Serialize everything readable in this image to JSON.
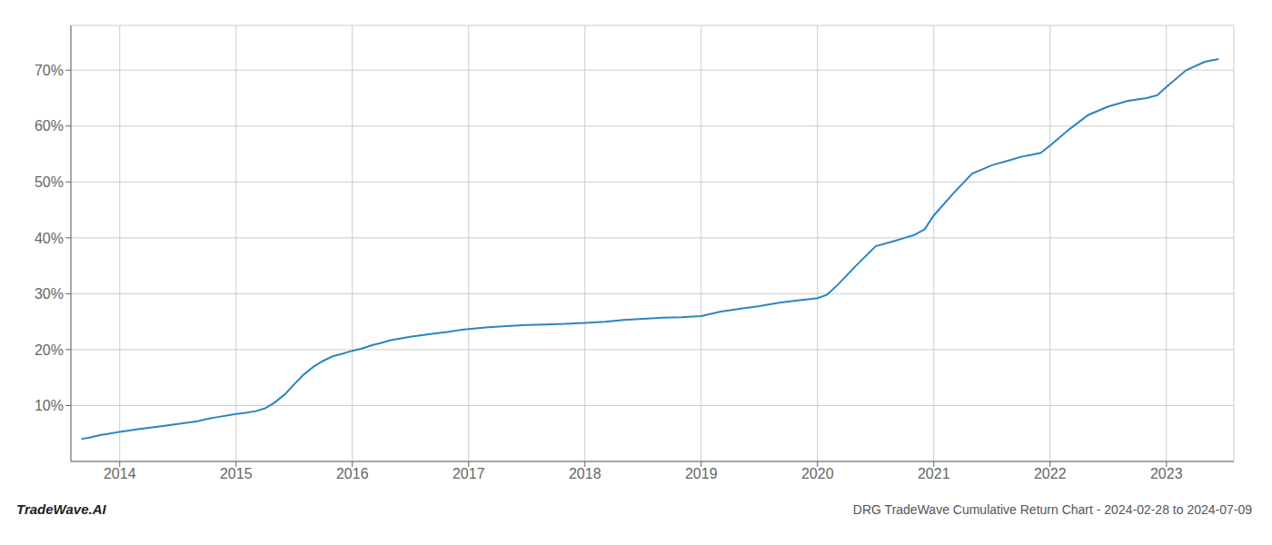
{
  "chart_data": {
    "type": "line",
    "title": "DRG TradeWave Cumulative Return Chart - 2024-02-28 to 2024-07-09",
    "annotations": [
      "TradeWave.AI"
    ],
    "color": "#2b85c2",
    "grid": true,
    "x": [
      2013.67,
      2013.75,
      2013.83,
      2013.92,
      2014.0,
      2014.17,
      2014.33,
      2014.5,
      2014.67,
      2014.75,
      2014.83,
      2014.92,
      2015.0,
      2015.08,
      2015.17,
      2015.25,
      2015.33,
      2015.42,
      2015.5,
      2015.58,
      2015.67,
      2015.75,
      2015.83,
      2015.92,
      2016.0,
      2016.08,
      2016.17,
      2016.25,
      2016.33,
      2016.5,
      2016.67,
      2016.83,
      2016.92,
      2017.0,
      2017.17,
      2017.33,
      2017.5,
      2017.67,
      2017.83,
      2017.92,
      2018.0,
      2018.17,
      2018.33,
      2018.5,
      2018.67,
      2018.83,
      2018.92,
      2019.0,
      2019.17,
      2019.33,
      2019.5,
      2019.67,
      2019.75,
      2019.83,
      2019.92,
      2020.0,
      2020.08,
      2020.17,
      2020.33,
      2020.5,
      2020.67,
      2020.75,
      2020.83,
      2020.92,
      2021.0,
      2021.17,
      2021.33,
      2021.5,
      2021.67,
      2021.75,
      2021.83,
      2021.92,
      2022.0,
      2022.17,
      2022.33,
      2022.5,
      2022.67,
      2022.83,
      2022.92,
      2023.0,
      2023.17,
      2023.33,
      2023.45
    ],
    "values": [
      4.0,
      4.3,
      4.7,
      5.0,
      5.3,
      5.8,
      6.2,
      6.7,
      7.2,
      7.6,
      7.9,
      8.2,
      8.5,
      8.7,
      9.0,
      9.5,
      10.5,
      12.0,
      13.8,
      15.5,
      17.0,
      18.0,
      18.8,
      19.3,
      19.8,
      20.2,
      20.8,
      21.2,
      21.7,
      22.3,
      22.8,
      23.2,
      23.5,
      23.7,
      24.0,
      24.2,
      24.4,
      24.5,
      24.6,
      24.7,
      24.8,
      25.0,
      25.3,
      25.5,
      25.7,
      25.8,
      25.9,
      26.0,
      26.8,
      27.3,
      27.8,
      28.4,
      28.6,
      28.8,
      29.0,
      29.2,
      29.8,
      31.5,
      35.0,
      38.5,
      39.5,
      40.0,
      40.5,
      41.5,
      44.0,
      48.0,
      51.5,
      53.0,
      54.0,
      54.5,
      54.8,
      55.2,
      56.5,
      59.5,
      62.0,
      63.5,
      64.5,
      65.0,
      65.5,
      67.0,
      70.0,
      71.5,
      72.0
    ],
    "xlim": [
      2013.58,
      2023.58
    ],
    "xticks": [
      2014,
      2015,
      2016,
      2017,
      2018,
      2019,
      2020,
      2021,
      2022,
      2023
    ],
    "ylim": [
      0,
      78
    ],
    "yticks": [
      {
        "value": 10,
        "label": "10%"
      },
      {
        "value": 20,
        "label": "20%"
      },
      {
        "value": 30,
        "label": "30%"
      },
      {
        "value": 40,
        "label": "40%"
      },
      {
        "value": 50,
        "label": "50%"
      },
      {
        "value": 60,
        "label": "60%"
      },
      {
        "value": 70,
        "label": "70%"
      }
    ]
  }
}
